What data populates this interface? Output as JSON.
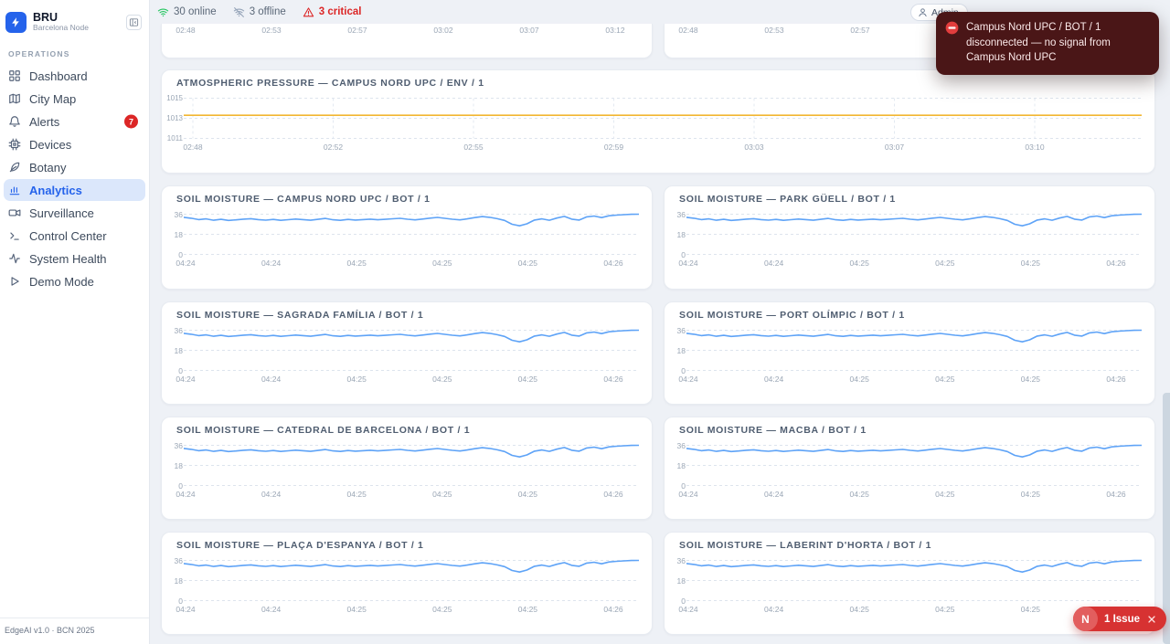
{
  "sidebar": {
    "brand": {
      "title": "BRU",
      "subtitle": "Barcelona Node"
    },
    "section": "OPERATIONS",
    "items": [
      {
        "label": "Dashboard",
        "icon": "grid-icon",
        "active": false
      },
      {
        "label": "City Map",
        "icon": "map-icon",
        "active": false
      },
      {
        "label": "Alerts",
        "icon": "bell-icon",
        "active": false,
        "badge": "7"
      },
      {
        "label": "Devices",
        "icon": "cpu-icon",
        "active": false
      },
      {
        "label": "Botany",
        "icon": "leaf-icon",
        "active": false
      },
      {
        "label": "Analytics",
        "icon": "bar-chart-icon",
        "active": true
      },
      {
        "label": "Surveillance",
        "icon": "video-camera-icon",
        "active": false
      },
      {
        "label": "Control Center",
        "icon": "terminal-icon",
        "active": false
      },
      {
        "label": "System Health",
        "icon": "activity-icon",
        "active": false
      },
      {
        "label": "Demo Mode",
        "icon": "play-icon",
        "active": false
      }
    ],
    "footer": "EdgeAI v1.0 · BCN 2025"
  },
  "statusbar": {
    "online": "30 online",
    "offline": "3 offline",
    "critical": "3 critical"
  },
  "user_button": {
    "label": "Admin"
  },
  "toast": {
    "message": "Campus Nord UPC / BOT / 1 disconnected — no signal from Campus Nord UPC"
  },
  "issue_pill": {
    "initial": "N",
    "label": "1 Issue"
  },
  "colors": {
    "accent": "#2563eb",
    "critical": "#dc2626",
    "online": "#22c55e",
    "toast_bg": "#4a1617",
    "soil_line": "#5ea3f7",
    "pressure_line": "#f2b632"
  },
  "series_library": {
    "soil_moisture_pct": [
      33.2,
      32.4,
      31.2,
      31.8,
      30.6,
      31.4,
      30.4,
      30.9,
      31.6,
      32.0,
      31.2,
      30.7,
      31.3,
      30.5,
      31.1,
      31.7,
      31.2,
      30.6,
      31.4,
      32.2,
      31.0,
      30.5,
      31.3,
      30.8,
      31.2,
      31.6,
      31.0,
      31.4,
      31.9,
      32.3,
      31.5,
      30.9,
      31.7,
      32.5,
      33.1,
      32.3,
      31.5,
      30.9,
      31.8,
      33.0,
      33.9,
      33.2,
      32.0,
      30.4,
      27.0,
      25.6,
      27.4,
      30.8,
      31.8,
      30.6,
      32.6,
      34.0,
      31.6,
      30.8,
      33.6,
      34.4,
      33.0,
      34.6,
      35.2,
      35.6,
      35.9,
      36.0
    ],
    "pressure_hpa": [
      1013.3,
      1013.3,
      1013.3,
      1013.3,
      1013.3,
      1013.3,
      1013.3,
      1013.3,
      1013.3,
      1013.3,
      1013.3,
      1013.3
    ]
  },
  "chart_data": [
    {
      "type": "line",
      "title": "",
      "x_ticks": [
        "02:48",
        "02:53",
        "02:57",
        "03:02",
        "03:07",
        "03:12"
      ],
      "y_ticks": [],
      "ylim": null,
      "values_ref": null,
      "color": null
    },
    {
      "type": "line",
      "title": "",
      "x_ticks": [
        "02:48",
        "02:53",
        "02:57"
      ],
      "y_ticks": [],
      "ylim": null,
      "values_ref": null,
      "color": null
    },
    {
      "type": "line",
      "title": "ATMOSPHERIC PRESSURE — CAMPUS NORD UPC / ENV / 1",
      "x_ticks": [
        "02:48",
        "02:52",
        "02:55",
        "02:59",
        "03:03",
        "03:07",
        "03:10"
      ],
      "y_ticks": [
        "1015",
        "1013",
        "1011"
      ],
      "ylim": [
        1011,
        1015
      ],
      "values_ref": "pressure_hpa",
      "color": "#f2b632",
      "vgrid": true
    },
    {
      "type": "line",
      "title": "SOIL MOISTURE — CAMPUS NORD UPC / BOT / 1",
      "x_ticks": [
        "04:24",
        "04:24",
        "04:25",
        "04:25",
        "04:25",
        "04:26"
      ],
      "y_ticks": [
        "36",
        "18",
        "0"
      ],
      "ylim": [
        0,
        36
      ],
      "values_ref": "soil_moisture_pct",
      "color": "#5ea3f7",
      "vgrid": false
    },
    {
      "type": "line",
      "title": "SOIL MOISTURE — PARK GÜELL / BOT / 1",
      "x_ticks": [
        "04:24",
        "04:24",
        "04:25",
        "04:25",
        "04:25",
        "04:26"
      ],
      "y_ticks": [
        "36",
        "18",
        "0"
      ],
      "ylim": [
        0,
        36
      ],
      "values_ref": "soil_moisture_pct",
      "color": "#5ea3f7",
      "vgrid": false
    },
    {
      "type": "line",
      "title": "SOIL MOISTURE — SAGRADA FAMÍLIA / BOT / 1",
      "x_ticks": [
        "04:24",
        "04:24",
        "04:25",
        "04:25",
        "04:25",
        "04:26"
      ],
      "y_ticks": [
        "36",
        "18",
        "0"
      ],
      "ylim": [
        0,
        36
      ],
      "values_ref": "soil_moisture_pct",
      "color": "#5ea3f7",
      "vgrid": false
    },
    {
      "type": "line",
      "title": "SOIL MOISTURE — PORT OLÍMPIC / BOT / 1",
      "x_ticks": [
        "04:24",
        "04:24",
        "04:25",
        "04:25",
        "04:25",
        "04:26"
      ],
      "y_ticks": [
        "36",
        "18",
        "0"
      ],
      "ylim": [
        0,
        36
      ],
      "values_ref": "soil_moisture_pct",
      "color": "#5ea3f7",
      "vgrid": false
    },
    {
      "type": "line",
      "title": "SOIL MOISTURE — CATEDRAL DE BARCELONA / BOT / 1",
      "x_ticks": [
        "04:24",
        "04:24",
        "04:25",
        "04:25",
        "04:25",
        "04:26"
      ],
      "y_ticks": [
        "36",
        "18",
        "0"
      ],
      "ylim": [
        0,
        36
      ],
      "values_ref": "soil_moisture_pct",
      "color": "#5ea3f7",
      "vgrid": false
    },
    {
      "type": "line",
      "title": "SOIL MOISTURE — MACBA / BOT / 1",
      "x_ticks": [
        "04:24",
        "04:24",
        "04:25",
        "04:25",
        "04:25",
        "04:26"
      ],
      "y_ticks": [
        "36",
        "18",
        "0"
      ],
      "ylim": [
        0,
        36
      ],
      "values_ref": "soil_moisture_pct",
      "color": "#5ea3f7",
      "vgrid": false
    },
    {
      "type": "line",
      "title": "SOIL MOISTURE — PLAÇA D'ESPANYA / BOT / 1",
      "x_ticks": [
        "04:24",
        "04:24",
        "04:25",
        "04:25",
        "04:25",
        "04:26"
      ],
      "y_ticks": [
        "36",
        "18",
        "0"
      ],
      "ylim": [
        0,
        36
      ],
      "values_ref": "soil_moisture_pct",
      "color": "#5ea3f7",
      "vgrid": false
    },
    {
      "type": "line",
      "title": "SOIL MOISTURE — LABERINT D'HORTA / BOT / 1",
      "x_ticks": [
        "04:24",
        "04:24",
        "04:25",
        "04:25",
        "04:25",
        "04:26"
      ],
      "y_ticks": [
        "36",
        "18",
        "0"
      ],
      "ylim": [
        0,
        36
      ],
      "values_ref": "soil_moisture_pct",
      "color": "#5ea3f7",
      "vgrid": false
    }
  ]
}
